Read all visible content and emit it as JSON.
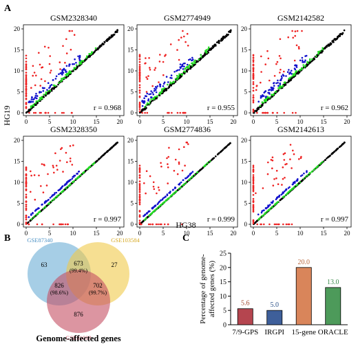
{
  "panels": {
    "a_label": "A",
    "b_label": "B",
    "c_label": "C"
  },
  "chart_data": [
    {
      "type": "scatter",
      "panel": "A",
      "xlabel": "HG38",
      "ylabel": "HG19",
      "xlim": [
        0,
        20
      ],
      "ylim": [
        0,
        20
      ],
      "x_ticks": [
        "0",
        "5",
        "10",
        "15",
        "20"
      ],
      "y_ticks": [
        "0",
        "5",
        "10",
        "15",
        "20"
      ],
      "series_colors": [
        "#000000",
        "#22dd22",
        "#1111cc",
        "#ee2222"
      ],
      "subplots": [
        {
          "title": "GSM2328340",
          "r_label": "r = 0.968",
          "r": 0.968
        },
        {
          "title": "GSM2774949",
          "r_label": "r = 0.955",
          "r": 0.955
        },
        {
          "title": "GSM2142582",
          "r_label": "r = 0.962",
          "r": 0.962
        },
        {
          "title": "GSM2328350",
          "r_label": "r = 0.997",
          "r": 0.997
        },
        {
          "title": "GSM2774836",
          "r_label": "r = 0.999",
          "r": 0.999
        },
        {
          "title": "GSM2142613",
          "r_label": "r = 0.997",
          "r": 0.997
        }
      ]
    },
    {
      "type": "venn",
      "panel": "B",
      "title": "Genome-affected genes",
      "sets": [
        {
          "name": "GSE87340",
          "color": "#6baed6"
        },
        {
          "name": "GSE103584",
          "color": "#f0c94a"
        },
        {
          "name": "GSE81089",
          "color": "#c44e62"
        }
      ],
      "regions": {
        "only_1": "63",
        "only_2": "27",
        "only_3": "876",
        "r12": "673",
        "r12_pct": "(99.4%)",
        "r13": "826",
        "r13_pct": "(98.6%)",
        "r23": "702",
        "r23_pct": "(99.7%)"
      }
    },
    {
      "type": "bar",
      "panel": "C",
      "categories": [
        "7/9-GPS",
        "IRGPI",
        "15-gene",
        "ORACLE"
      ],
      "values": [
        5.6,
        5.0,
        20.0,
        13.0
      ],
      "value_labels": [
        "5.6",
        "5.0",
        "20.0",
        "13.0"
      ],
      "bar_colors": [
        "#b5454f",
        "#3e5f9a",
        "#d9855a",
        "#4d9a5a"
      ],
      "label_colors": [
        "#a0462d",
        "#2a4f86",
        "#b8653a",
        "#3a8a4a"
      ],
      "ylabel": "Percentage of genome-affected genes (%)",
      "ylabel_lines": [
        "Percentage of genome-",
        "affected genes (%)"
      ],
      "ylim": [
        0,
        25
      ],
      "y_ticks": [
        "0",
        "5",
        "10",
        "15",
        "20",
        "25"
      ]
    }
  ]
}
